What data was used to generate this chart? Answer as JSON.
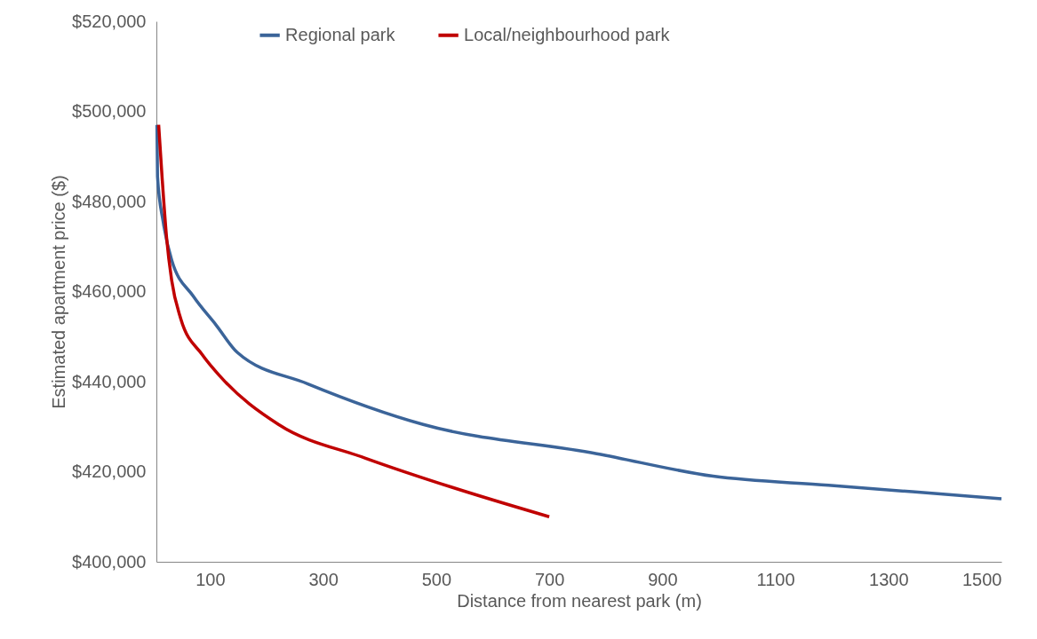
{
  "chart_data": {
    "type": "line",
    "xlabel": "Distance from nearest park (m)",
    "ylabel": "Estimated apartment price ($)",
    "xlim": [
      5,
      1500
    ],
    "xticks": [
      100,
      300,
      500,
      700,
      900,
      1100,
      1300,
      1500
    ],
    "ylim": [
      400000,
      520000
    ],
    "yticks": [
      {
        "value": 400000,
        "label": "$400,000"
      },
      {
        "value": 420000,
        "label": "$420,000"
      },
      {
        "value": 440000,
        "label": "$440,000"
      },
      {
        "value": 460000,
        "label": "$460,000"
      },
      {
        "value": 480000,
        "label": "$480,000"
      },
      {
        "value": 500000,
        "label": "$500,000"
      },
      {
        "value": 520000,
        "label": "$520,000"
      }
    ],
    "grid": false,
    "legend": "top",
    "marker": "none",
    "line_style": "solid",
    "series": [
      {
        "name": "Regional park",
        "color": "#3b6499",
        "x": [
          6,
          7,
          17,
          32,
          70,
          111,
          148,
          273,
          477,
          784,
          990,
          1194,
          1500
        ],
        "values": [
          497000,
          485500,
          475500,
          467000,
          459000,
          452500,
          446500,
          439500,
          430500,
          424000,
          419000,
          417000,
          414000
        ]
      },
      {
        "name": "Local/neighbourhood park",
        "color": "#c00000",
        "x": [
          9,
          15,
          23,
          32,
          48,
          86,
          119,
          221,
          375,
          529,
          700
        ],
        "values": [
          497000,
          485500,
          472000,
          462500,
          454000,
          446000,
          441000,
          430500,
          423000,
          416500,
          410000
        ]
      }
    ]
  }
}
